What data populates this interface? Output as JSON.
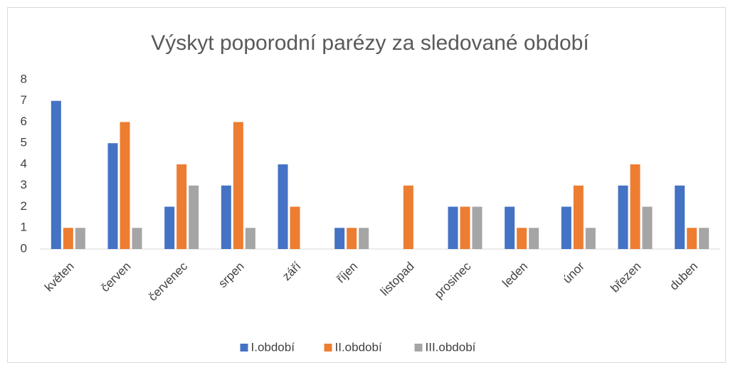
{
  "chart_data": {
    "type": "bar",
    "title": "Výskyt poporodní parézy za sledované období",
    "categories": [
      "květen",
      "červen",
      "červenec",
      "srpen",
      "září",
      "říjen",
      "listopad",
      "prosinec",
      "leden",
      "únor",
      "březen",
      "duben"
    ],
    "series": [
      {
        "name": "I.období",
        "color": "#4472c4",
        "values": [
          7,
          5,
          2,
          3,
          4,
          1,
          0,
          2,
          2,
          2,
          3,
          3
        ]
      },
      {
        "name": "II.období",
        "color": "#ed7d31",
        "values": [
          1,
          6,
          4,
          6,
          2,
          1,
          3,
          2,
          1,
          3,
          4,
          1
        ]
      },
      {
        "name": "III.období",
        "color": "#a5a5a5",
        "values": [
          1,
          1,
          3,
          1,
          0,
          1,
          0,
          2,
          1,
          1,
          2,
          1
        ]
      }
    ],
    "ylim": [
      0,
      8
    ],
    "yticks": [
      0,
      1,
      2,
      3,
      4,
      5,
      6,
      7,
      8
    ],
    "grid": false,
    "legend": "bottom"
  }
}
